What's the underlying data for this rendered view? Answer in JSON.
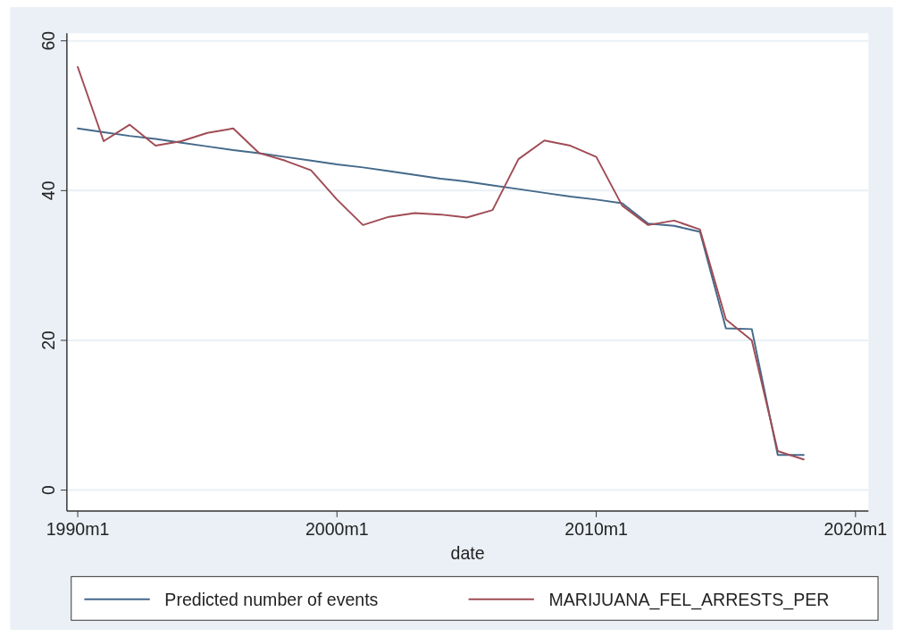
{
  "chart_data": {
    "type": "line",
    "xlabel": "date",
    "x": [
      "1990-01",
      "1991-01",
      "1992-01",
      "1993-01",
      "1994-01",
      "1995-01",
      "1996-01",
      "1997-01",
      "1998-01",
      "1999-01",
      "2000-01",
      "2001-01",
      "2002-01",
      "2003-01",
      "2004-01",
      "2005-01",
      "2006-01",
      "2007-01",
      "2008-01",
      "2009-01",
      "2010-01",
      "2011-01",
      "2012-01",
      "2013-01",
      "2014-01",
      "2015-01",
      "2016-01",
      "2017-01",
      "2018-01"
    ],
    "series": [
      {
        "name": "Predicted number of events",
        "color": "#44698a",
        "values": [
          48.3,
          47.8,
          47.3,
          46.9,
          46.4,
          45.9,
          45.4,
          45.0,
          44.5,
          44.0,
          43.5,
          43.1,
          42.6,
          42.1,
          41.6,
          41.2,
          40.7,
          40.2,
          39.7,
          39.2,
          38.8,
          38.3,
          35.6,
          35.3,
          34.5,
          21.6,
          21.5,
          4.7,
          4.7
        ]
      },
      {
        "name": "MARIJUANA_FEL_ARRESTS_PER",
        "color": "#a04c55",
        "values": [
          56.5,
          46.6,
          48.8,
          46.0,
          46.6,
          47.7,
          48.3,
          45.0,
          44.0,
          42.7,
          38.8,
          35.4,
          36.5,
          37.0,
          36.8,
          36.4,
          37.4,
          44.2,
          46.7,
          46.0,
          44.5,
          38.0,
          35.4,
          36.0,
          34.8,
          22.8,
          20.0,
          5.2,
          4.1
        ]
      }
    ],
    "xlim": [
      "1989-08",
      "2020-07"
    ],
    "xticks": [
      {
        "value": "1990-01",
        "label": "1990m1"
      },
      {
        "value": "2000-01",
        "label": "2000m1"
      },
      {
        "value": "2010-01",
        "label": "2010m1"
      },
      {
        "value": "2020-01",
        "label": "2020m1"
      }
    ],
    "ylim": [
      -2.8,
      61
    ],
    "yticks": [
      0,
      20,
      40,
      60
    ],
    "grid": "y",
    "legend": "bottom",
    "marker": "none",
    "line_style": "solid"
  }
}
